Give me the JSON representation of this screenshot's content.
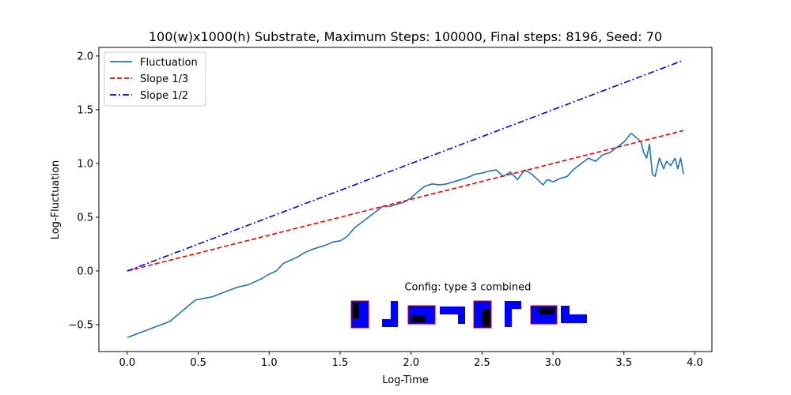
{
  "chart_data": {
    "type": "line",
    "title": "100(w)x1000(h) Substrate, Maximum Steps: 100000, Final steps: 8196, Seed: 70",
    "xlabel": "Log-Time",
    "ylabel": "Log-Fluctuation",
    "xlim": [
      -0.2,
      4.12
    ],
    "ylim": [
      -0.75,
      2.08
    ],
    "xticks": [
      0.0,
      0.5,
      1.0,
      1.5,
      2.0,
      2.5,
      3.0,
      3.5,
      4.0
    ],
    "xtick_labels": [
      "0.0",
      "0.5",
      "1.0",
      "1.5",
      "2.0",
      "2.5",
      "3.0",
      "3.5",
      "4.0"
    ],
    "yticks": [
      -0.5,
      0.0,
      0.5,
      1.0,
      1.5,
      2.0
    ],
    "ytick_labels": [
      "−0.5",
      "0.0",
      "0.5",
      "1.0",
      "1.5",
      "2.0"
    ],
    "grid": false,
    "legend_position": "top-left",
    "series": [
      {
        "name": "Fluctuation",
        "color": "#1f77b4",
        "style": "solid",
        "x": [
          0.0,
          0.3,
          0.48,
          0.6,
          0.7,
          0.78,
          0.85,
          0.95,
          1.0,
          1.05,
          1.1,
          1.15,
          1.2,
          1.25,
          1.3,
          1.35,
          1.4,
          1.45,
          1.5,
          1.55,
          1.6,
          1.65,
          1.7,
          1.75,
          1.8,
          1.85,
          1.9,
          1.95,
          2.0,
          2.05,
          2.1,
          2.15,
          2.2,
          2.25,
          2.3,
          2.35,
          2.4,
          2.45,
          2.5,
          2.55,
          2.6,
          2.65,
          2.7,
          2.75,
          2.8,
          2.85,
          2.9,
          2.93,
          2.96,
          3.0,
          3.05,
          3.1,
          3.15,
          3.2,
          3.25,
          3.3,
          3.35,
          3.4,
          3.45,
          3.5,
          3.55,
          3.58,
          3.62,
          3.64,
          3.66,
          3.68,
          3.7,
          3.72,
          3.75,
          3.78,
          3.8,
          3.83,
          3.86,
          3.88,
          3.9,
          3.92
        ],
        "y": [
          -0.62,
          -0.47,
          -0.27,
          -0.24,
          -0.19,
          -0.15,
          -0.13,
          -0.07,
          -0.03,
          0.0,
          0.07,
          0.1,
          0.13,
          0.17,
          0.2,
          0.22,
          0.24,
          0.27,
          0.28,
          0.32,
          0.4,
          0.45,
          0.5,
          0.55,
          0.6,
          0.6,
          0.62,
          0.64,
          0.68,
          0.74,
          0.79,
          0.81,
          0.8,
          0.81,
          0.83,
          0.85,
          0.87,
          0.9,
          0.91,
          0.93,
          0.94,
          0.88,
          0.92,
          0.85,
          0.94,
          0.9,
          0.84,
          0.8,
          0.85,
          0.83,
          0.86,
          0.88,
          0.95,
          1.0,
          1.05,
          1.02,
          1.08,
          1.1,
          1.15,
          1.2,
          1.28,
          1.25,
          1.2,
          1.1,
          1.05,
          1.18,
          0.9,
          0.88,
          1.05,
          0.95,
          1.02,
          0.98,
          1.05,
          0.95,
          1.05,
          0.9
        ]
      },
      {
        "name": "Slope 1/3",
        "color": "#ff0000",
        "style": "dashed",
        "x": [
          0.0,
          3.92
        ],
        "y": [
          0.0,
          1.307
        ]
      },
      {
        "name": "Slope 1/2",
        "color": "#0000ff",
        "style": "dashdot",
        "x": [
          0.0,
          3.92
        ],
        "y": [
          0.0,
          1.96
        ]
      }
    ],
    "annotation": {
      "text": "Config:  type 3 combined",
      "x": 2.4,
      "y": -0.18
    }
  },
  "config_glyphs": {
    "fill_color": "#0000ff",
    "dark_color": "#000000",
    "border_color": "#cc0000",
    "count": 8
  }
}
